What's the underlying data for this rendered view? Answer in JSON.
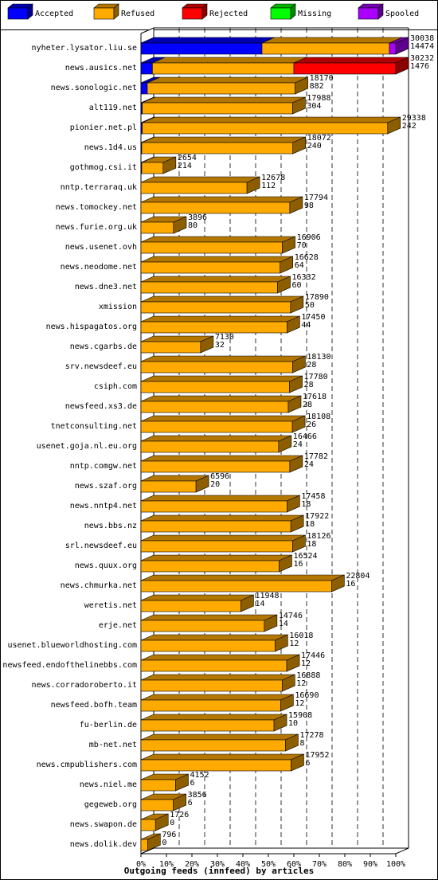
{
  "chart_data": {
    "type": "bar",
    "orientation": "horizontal",
    "stacked": true,
    "title": "Outgoing feeds (innfeed) by articles",
    "legend_position": "top",
    "xlim": [
      0,
      100
    ],
    "x_unit": "%",
    "x_ticks": [
      "0%",
      "10%",
      "20%",
      "30%",
      "40%",
      "50%",
      "60%",
      "70%",
      "80%",
      "90%",
      "100%"
    ],
    "grid": true,
    "series": [
      {
        "name": "Accepted",
        "color": "#0000ff"
      },
      {
        "name": "Refused",
        "color": "#ffaa00"
      },
      {
        "name": "Rejected",
        "color": "#ff0000"
      },
      {
        "name": "Missing",
        "color": "#00ff00"
      },
      {
        "name": "Spooled",
        "color": "#aa00ff"
      }
    ],
    "rows": [
      {
        "host": "nyheter.lysator.liu.se",
        "offered": "30038",
        "spooled": "14474",
        "pct": {
          "accepted": 47.5,
          "refused": 50.0,
          "rejected": 0,
          "missing": 0,
          "spooled": 2.5
        }
      },
      {
        "host": "news.ausics.net",
        "offered": "30232",
        "spooled": "1476",
        "pct": {
          "accepted": 4.5,
          "refused": 55.5,
          "rejected": 40.0,
          "missing": 0,
          "spooled": 0
        }
      },
      {
        "host": "news.sonologic.net",
        "offered": "18170",
        "spooled": "882",
        "pct": {
          "accepted": 2.5,
          "refused": 58.0,
          "rejected": 0,
          "missing": 0,
          "spooled": 0
        }
      },
      {
        "host": "alt119.net",
        "offered": "17988",
        "spooled": "304",
        "pct": {
          "accepted": 0.5,
          "refused": 59.0,
          "rejected": 0,
          "missing": 0,
          "spooled": 0
        }
      },
      {
        "host": "pionier.net.pl",
        "offered": "29338",
        "spooled": "242",
        "pct": {
          "accepted": 0.5,
          "refused": 96.3,
          "rejected": 0,
          "missing": 0,
          "spooled": 0
        }
      },
      {
        "host": "news.1d4.us",
        "offered": "18072",
        "spooled": "240",
        "pct": {
          "accepted": 0.3,
          "refused": 59.3,
          "rejected": 0,
          "missing": 0,
          "spooled": 0
        }
      },
      {
        "host": "gothmog.csi.it",
        "offered": "2654",
        "spooled": "214",
        "pct": {
          "accepted": 0.3,
          "refused": 8.4,
          "rejected": 0,
          "missing": 0,
          "spooled": 0
        }
      },
      {
        "host": "nntp.terraraq.uk",
        "offered": "12678",
        "spooled": "112",
        "pct": {
          "accepted": 0,
          "refused": 41.6,
          "rejected": 0,
          "missing": 0,
          "spooled": 0
        }
      },
      {
        "host": "news.tomockey.net",
        "offered": "17794",
        "spooled": "98",
        "pct": {
          "accepted": 0,
          "refused": 58.4,
          "rejected": 0,
          "missing": 0,
          "spooled": 0
        }
      },
      {
        "host": "news.furie.org.uk",
        "offered": "3896",
        "spooled": "80",
        "pct": {
          "accepted": 0,
          "refused": 12.8,
          "rejected": 0,
          "missing": 0,
          "spooled": 0
        }
      },
      {
        "host": "news.usenet.ovh",
        "offered": "16906",
        "spooled": "70",
        "pct": {
          "accepted": 0,
          "refused": 55.5,
          "rejected": 0,
          "missing": 0,
          "spooled": 0
        }
      },
      {
        "host": "news.neodome.net",
        "offered": "16628",
        "spooled": "64",
        "pct": {
          "accepted": 0,
          "refused": 54.6,
          "rejected": 0,
          "missing": 0,
          "spooled": 0
        }
      },
      {
        "host": "news.dne3.net",
        "offered": "16332",
        "spooled": "60",
        "pct": {
          "accepted": 0,
          "refused": 53.6,
          "rejected": 0,
          "missing": 0,
          "spooled": 0
        }
      },
      {
        "host": "xmission",
        "offered": "17890",
        "spooled": "50",
        "pct": {
          "accepted": 0,
          "refused": 58.7,
          "rejected": 0,
          "missing": 0,
          "spooled": 0
        }
      },
      {
        "host": "news.hispagatos.org",
        "offered": "17450",
        "spooled": "44",
        "pct": {
          "accepted": 0,
          "refused": 57.3,
          "rejected": 0,
          "missing": 0,
          "spooled": 0
        }
      },
      {
        "host": "news.cgarbs.de",
        "offered": "7130",
        "spooled": "32",
        "pct": {
          "accepted": 0,
          "refused": 23.4,
          "rejected": 0,
          "missing": 0,
          "spooled": 0
        }
      },
      {
        "host": "srv.newsdeef.eu",
        "offered": "18130",
        "spooled": "28",
        "pct": {
          "accepted": 0,
          "refused": 59.5,
          "rejected": 0,
          "missing": 0,
          "spooled": 0
        }
      },
      {
        "host": "csiph.com",
        "offered": "17780",
        "spooled": "28",
        "pct": {
          "accepted": 0,
          "refused": 58.3,
          "rejected": 0,
          "missing": 0,
          "spooled": 0
        }
      },
      {
        "host": "newsfeed.xs3.de",
        "offered": "17618",
        "spooled": "28",
        "pct": {
          "accepted": 0,
          "refused": 57.8,
          "rejected": 0,
          "missing": 0,
          "spooled": 0
        }
      },
      {
        "host": "tnetconsulting.net",
        "offered": "18108",
        "spooled": "26",
        "pct": {
          "accepted": 0,
          "refused": 59.4,
          "rejected": 0,
          "missing": 0,
          "spooled": 0
        }
      },
      {
        "host": "usenet.goja.nl.eu.org",
        "offered": "16466",
        "spooled": "24",
        "pct": {
          "accepted": 0,
          "refused": 54.0,
          "rejected": 0,
          "missing": 0,
          "spooled": 0
        }
      },
      {
        "host": "nntp.comgw.net",
        "offered": "17782",
        "spooled": "24",
        "pct": {
          "accepted": 0,
          "refused": 58.4,
          "rejected": 0,
          "missing": 0,
          "spooled": 0
        }
      },
      {
        "host": "news.szaf.org",
        "offered": "6596",
        "spooled": "20",
        "pct": {
          "accepted": 0,
          "refused": 21.6,
          "rejected": 0,
          "missing": 0,
          "spooled": 0
        }
      },
      {
        "host": "news.nntp4.net",
        "offered": "17458",
        "spooled": "18",
        "pct": {
          "accepted": 0,
          "refused": 57.3,
          "rejected": 0,
          "missing": 0,
          "spooled": 0
        }
      },
      {
        "host": "news.bbs.nz",
        "offered": "17922",
        "spooled": "18",
        "pct": {
          "accepted": 0,
          "refused": 58.8,
          "rejected": 0,
          "missing": 0,
          "spooled": 0
        }
      },
      {
        "host": "srl.newsdeef.eu",
        "offered": "18126",
        "spooled": "18",
        "pct": {
          "accepted": 0,
          "refused": 59.5,
          "rejected": 0,
          "missing": 0,
          "spooled": 0
        }
      },
      {
        "host": "news.quux.org",
        "offered": "16524",
        "spooled": "16",
        "pct": {
          "accepted": 0,
          "refused": 54.2,
          "rejected": 0,
          "missing": 0,
          "spooled": 0
        }
      },
      {
        "host": "news.chmurka.net",
        "offered": "22804",
        "spooled": "16",
        "pct": {
          "accepted": 0,
          "refused": 74.8,
          "rejected": 0,
          "missing": 0,
          "spooled": 0
        }
      },
      {
        "host": "weretis.net",
        "offered": "11948",
        "spooled": "14",
        "pct": {
          "accepted": 0,
          "refused": 39.2,
          "rejected": 0,
          "missing": 0,
          "spooled": 0
        }
      },
      {
        "host": "erje.net",
        "offered": "14746",
        "spooled": "14",
        "pct": {
          "accepted": 0,
          "refused": 48.4,
          "rejected": 0,
          "missing": 0,
          "spooled": 0
        }
      },
      {
        "host": "usenet.blueworldhosting.com",
        "offered": "16018",
        "spooled": "12",
        "pct": {
          "accepted": 0,
          "refused": 52.6,
          "rejected": 0,
          "missing": 0,
          "spooled": 0
        }
      },
      {
        "host": "newsfeed.endofthelinebbs.com",
        "offered": "17446",
        "spooled": "12",
        "pct": {
          "accepted": 0,
          "refused": 57.2,
          "rejected": 0,
          "missing": 0,
          "spooled": 0
        }
      },
      {
        "host": "news.corradoroberto.it",
        "offered": "16888",
        "spooled": "12",
        "pct": {
          "accepted": 0,
          "refused": 55.4,
          "rejected": 0,
          "missing": 0,
          "spooled": 0
        }
      },
      {
        "host": "newsfeed.bofh.team",
        "offered": "16690",
        "spooled": "12",
        "pct": {
          "accepted": 0,
          "refused": 54.8,
          "rejected": 0,
          "missing": 0,
          "spooled": 0
        }
      },
      {
        "host": "fu-berlin.de",
        "offered": "15908",
        "spooled": "10",
        "pct": {
          "accepted": 0,
          "refused": 52.2,
          "rejected": 0,
          "missing": 0,
          "spooled": 0
        }
      },
      {
        "host": "mb-net.net",
        "offered": "17278",
        "spooled": "8",
        "pct": {
          "accepted": 0,
          "refused": 56.7,
          "rejected": 0,
          "missing": 0,
          "spooled": 0
        }
      },
      {
        "host": "news.cmpublishers.com",
        "offered": "17952",
        "spooled": "6",
        "pct": {
          "accepted": 0,
          "refused": 58.9,
          "rejected": 0,
          "missing": 0,
          "spooled": 0
        }
      },
      {
        "host": "news.niel.me",
        "offered": "4152",
        "spooled": "6",
        "pct": {
          "accepted": 0,
          "refused": 13.6,
          "rejected": 0,
          "missing": 0,
          "spooled": 0
        }
      },
      {
        "host": "gegeweb.org",
        "offered": "3856",
        "spooled": "6",
        "pct": {
          "accepted": 0,
          "refused": 12.7,
          "rejected": 0,
          "missing": 0,
          "spooled": 0
        }
      },
      {
        "host": "news.swapon.de",
        "offered": "1726",
        "spooled": "0",
        "pct": {
          "accepted": 0,
          "refused": 5.7,
          "rejected": 0,
          "missing": 0,
          "spooled": 0
        }
      },
      {
        "host": "news.dolik.dev",
        "offered": "796",
        "spooled": "0",
        "pct": {
          "accepted": 0,
          "refused": 2.6,
          "rejected": 0,
          "missing": 0,
          "spooled": 0
        }
      }
    ]
  }
}
